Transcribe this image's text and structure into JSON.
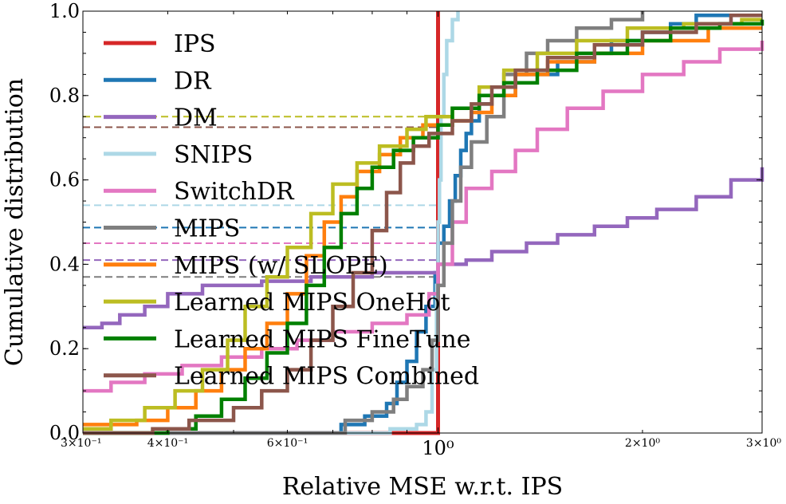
{
  "chart_data": {
    "type": "line",
    "title": "",
    "xlabel": "Relative MSE w.r.t. IPS",
    "ylabel": "Cumulative distribution",
    "xscale": "log",
    "xlim": [
      0.3,
      3.0
    ],
    "ylim": [
      0.0,
      1.0
    ],
    "legend_placement": "upper-left",
    "grid": false,
    "x_ticks": [
      {
        "value": 0.3,
        "label": "3×10⁻¹",
        "major": false
      },
      {
        "value": 0.4,
        "label": "4×10⁻¹",
        "major": false
      },
      {
        "value": 0.6,
        "label": "6×10⁻¹",
        "major": false
      },
      {
        "value": 1.0,
        "label": "10⁰",
        "major": true
      },
      {
        "value": 2.0,
        "label": "2×10⁰",
        "major": false
      },
      {
        "value": 3.0,
        "label": "3×10⁰",
        "major": false
      }
    ],
    "y_ticks": [
      {
        "value": 0.0,
        "label": "0.0"
      },
      {
        "value": 0.2,
        "label": "0.2"
      },
      {
        "value": 0.4,
        "label": "0.4"
      },
      {
        "value": 0.6,
        "label": "0.6"
      },
      {
        "value": 0.8,
        "label": "0.8"
      },
      {
        "value": 1.0,
        "label": "1.0"
      }
    ],
    "series": [
      {
        "name": "IPS",
        "color": "#d62728",
        "points": [
          [
            0.3,
            0.0
          ],
          [
            1.0,
            0.0
          ],
          [
            1.0,
            1.0
          ]
        ],
        "ref_y": null
      },
      {
        "name": "DR",
        "color": "#1f77b4",
        "points": [
          [
            0.3,
            0.0
          ],
          [
            0.7,
            0.0
          ],
          [
            0.72,
            0.02
          ],
          [
            0.78,
            0.04
          ],
          [
            0.84,
            0.07
          ],
          [
            0.87,
            0.12
          ],
          [
            0.9,
            0.17
          ],
          [
            0.93,
            0.24
          ],
          [
            0.96,
            0.3
          ],
          [
            0.99,
            0.38
          ],
          [
            1.0,
            0.45
          ],
          [
            1.02,
            0.49
          ],
          [
            1.04,
            0.55
          ],
          [
            1.06,
            0.61
          ],
          [
            1.08,
            0.67
          ],
          [
            1.1,
            0.71
          ],
          [
            1.12,
            0.74
          ],
          [
            1.15,
            0.78
          ],
          [
            1.2,
            0.8
          ],
          [
            1.3,
            0.85
          ],
          [
            1.5,
            0.88
          ],
          [
            1.7,
            0.9
          ],
          [
            1.8,
            0.93
          ],
          [
            2.0,
            0.95
          ],
          [
            2.2,
            0.97
          ],
          [
            2.4,
            0.99
          ],
          [
            3.0,
            0.99
          ]
        ],
        "ref_y": 0.487
      },
      {
        "name": "DM",
        "color": "#9467bd",
        "points": [
          [
            0.3,
            0.25
          ],
          [
            0.32,
            0.26
          ],
          [
            0.34,
            0.28
          ],
          [
            0.37,
            0.3
          ],
          [
            0.4,
            0.33
          ],
          [
            0.45,
            0.35
          ],
          [
            0.55,
            0.36
          ],
          [
            0.65,
            0.37
          ],
          [
            0.8,
            0.38
          ],
          [
            1.0,
            0.4
          ],
          [
            1.1,
            0.41
          ],
          [
            1.2,
            0.43
          ],
          [
            1.35,
            0.45
          ],
          [
            1.5,
            0.47
          ],
          [
            1.7,
            0.49
          ],
          [
            1.9,
            0.51
          ],
          [
            2.1,
            0.53
          ],
          [
            2.4,
            0.56
          ],
          [
            2.7,
            0.6
          ],
          [
            3.0,
            0.63
          ]
        ],
        "ref_y": 0.41
      },
      {
        "name": "SNIPS",
        "color": "#add8e6",
        "points": [
          [
            0.3,
            0.0
          ],
          [
            0.75,
            0.0
          ],
          [
            0.85,
            0.01
          ],
          [
            0.93,
            0.02
          ],
          [
            0.96,
            0.05
          ],
          [
            0.98,
            0.15
          ],
          [
            0.995,
            0.35
          ],
          [
            1.0,
            0.5
          ],
          [
            1.005,
            0.6
          ],
          [
            1.01,
            0.75
          ],
          [
            1.02,
            0.85
          ],
          [
            1.03,
            0.93
          ],
          [
            1.05,
            0.98
          ],
          [
            1.07,
            1.0
          ]
        ],
        "ref_y": 0.54
      },
      {
        "name": "SwitchDR",
        "color": "#e377c2",
        "points": [
          [
            0.3,
            0.1
          ],
          [
            0.33,
            0.12
          ],
          [
            0.37,
            0.14
          ],
          [
            0.42,
            0.16
          ],
          [
            0.48,
            0.18
          ],
          [
            0.55,
            0.2
          ],
          [
            0.62,
            0.22
          ],
          [
            0.7,
            0.24
          ],
          [
            0.8,
            0.26
          ],
          [
            0.9,
            0.28
          ],
          [
            0.97,
            0.33
          ],
          [
            1.0,
            0.4
          ],
          [
            1.05,
            0.5
          ],
          [
            1.1,
            0.58
          ],
          [
            1.2,
            0.62
          ],
          [
            1.3,
            0.67
          ],
          [
            1.4,
            0.72
          ],
          [
            1.55,
            0.77
          ],
          [
            1.75,
            0.81
          ],
          [
            2.0,
            0.85
          ],
          [
            2.3,
            0.88
          ],
          [
            2.6,
            0.91
          ],
          [
            3.0,
            0.93
          ]
        ],
        "ref_y": 0.45
      },
      {
        "name": "MIPS",
        "color": "#7f7f7f",
        "points": [
          [
            0.3,
            0.0
          ],
          [
            0.72,
            0.0
          ],
          [
            0.73,
            0.03
          ],
          [
            0.8,
            0.05
          ],
          [
            0.86,
            0.08
          ],
          [
            0.9,
            0.11
          ],
          [
            0.95,
            0.15
          ],
          [
            0.98,
            0.22
          ],
          [
            1.0,
            0.35
          ],
          [
            1.02,
            0.45
          ],
          [
            1.05,
            0.55
          ],
          [
            1.08,
            0.63
          ],
          [
            1.12,
            0.69
          ],
          [
            1.18,
            0.75
          ],
          [
            1.25,
            0.85
          ],
          [
            1.35,
            0.9
          ],
          [
            1.45,
            0.93
          ],
          [
            1.6,
            0.96
          ],
          [
            1.8,
            0.98
          ],
          [
            2.0,
            1.0
          ]
        ],
        "ref_y": 0.37
      },
      {
        "name": "MIPS (w/ SLOPE)",
        "color": "#ff7f0e",
        "points": [
          [
            0.3,
            0.02
          ],
          [
            0.36,
            0.03
          ],
          [
            0.4,
            0.06
          ],
          [
            0.44,
            0.1
          ],
          [
            0.48,
            0.15
          ],
          [
            0.52,
            0.2
          ],
          [
            0.56,
            0.26
          ],
          [
            0.6,
            0.33
          ],
          [
            0.64,
            0.42
          ],
          [
            0.68,
            0.5
          ],
          [
            0.72,
            0.56
          ],
          [
            0.76,
            0.62
          ],
          [
            0.82,
            0.66
          ],
          [
            0.88,
            0.7
          ],
          [
            0.95,
            0.73
          ],
          [
            1.05,
            0.74
          ],
          [
            1.12,
            0.76
          ],
          [
            1.2,
            0.8
          ],
          [
            1.3,
            0.85
          ],
          [
            1.45,
            0.88
          ],
          [
            1.7,
            0.9
          ],
          [
            2.0,
            0.93
          ],
          [
            2.5,
            0.96
          ],
          [
            3.0,
            0.96
          ]
        ],
        "ref_y": null
      },
      {
        "name": "Learned MIPS OneHot",
        "color": "#bcbd22",
        "points": [
          [
            0.3,
            0.01
          ],
          [
            0.33,
            0.03
          ],
          [
            0.37,
            0.06
          ],
          [
            0.41,
            0.1
          ],
          [
            0.45,
            0.15
          ],
          [
            0.49,
            0.22
          ],
          [
            0.52,
            0.3
          ],
          [
            0.56,
            0.37
          ],
          [
            0.6,
            0.44
          ],
          [
            0.65,
            0.52
          ],
          [
            0.7,
            0.59
          ],
          [
            0.76,
            0.64
          ],
          [
            0.82,
            0.68
          ],
          [
            0.9,
            0.72
          ],
          [
            0.96,
            0.75
          ],
          [
            1.05,
            0.77
          ],
          [
            1.15,
            0.82
          ],
          [
            1.25,
            0.86
          ],
          [
            1.4,
            0.9
          ],
          [
            1.6,
            0.93
          ],
          [
            1.9,
            0.96
          ],
          [
            2.3,
            0.97
          ],
          [
            2.8,
            0.98
          ],
          [
            3.0,
            0.98
          ]
        ],
        "ref_y": 0.75
      },
      {
        "name": "Learned MIPS FineTune",
        "color": "#008000",
        "points": [
          [
            0.3,
            0.0
          ],
          [
            0.4,
            0.01
          ],
          [
            0.44,
            0.04
          ],
          [
            0.48,
            0.08
          ],
          [
            0.52,
            0.13
          ],
          [
            0.56,
            0.19
          ],
          [
            0.6,
            0.26
          ],
          [
            0.64,
            0.35
          ],
          [
            0.68,
            0.44
          ],
          [
            0.72,
            0.52
          ],
          [
            0.76,
            0.58
          ],
          [
            0.8,
            0.63
          ],
          [
            0.86,
            0.67
          ],
          [
            0.92,
            0.7
          ],
          [
            1.0,
            0.73
          ],
          [
            1.05,
            0.77
          ],
          [
            1.15,
            0.8
          ],
          [
            1.25,
            0.83
          ],
          [
            1.4,
            0.86
          ],
          [
            1.6,
            0.9
          ],
          [
            1.9,
            0.93
          ],
          [
            2.2,
            0.96
          ],
          [
            2.6,
            0.97
          ],
          [
            3.0,
            0.98
          ]
        ],
        "ref_y": null
      },
      {
        "name": "Learned MIPS Combined",
        "color": "#8c564b",
        "points": [
          [
            0.3,
            0.0
          ],
          [
            0.38,
            0.01
          ],
          [
            0.43,
            0.03
          ],
          [
            0.5,
            0.06
          ],
          [
            0.55,
            0.1
          ],
          [
            0.6,
            0.15
          ],
          [
            0.65,
            0.22
          ],
          [
            0.7,
            0.3
          ],
          [
            0.75,
            0.38
          ],
          [
            0.8,
            0.48
          ],
          [
            0.84,
            0.57
          ],
          [
            0.88,
            0.64
          ],
          [
            0.92,
            0.68
          ],
          [
            0.97,
            0.71
          ],
          [
            1.05,
            0.74
          ],
          [
            1.12,
            0.78
          ],
          [
            1.2,
            0.82
          ],
          [
            1.3,
            0.86
          ],
          [
            1.45,
            0.89
          ],
          [
            1.7,
            0.92
          ],
          [
            2.0,
            0.95
          ],
          [
            2.4,
            0.97
          ],
          [
            2.7,
            0.99
          ],
          [
            3.0,
            0.99
          ]
        ],
        "ref_y": 0.725
      }
    ]
  }
}
